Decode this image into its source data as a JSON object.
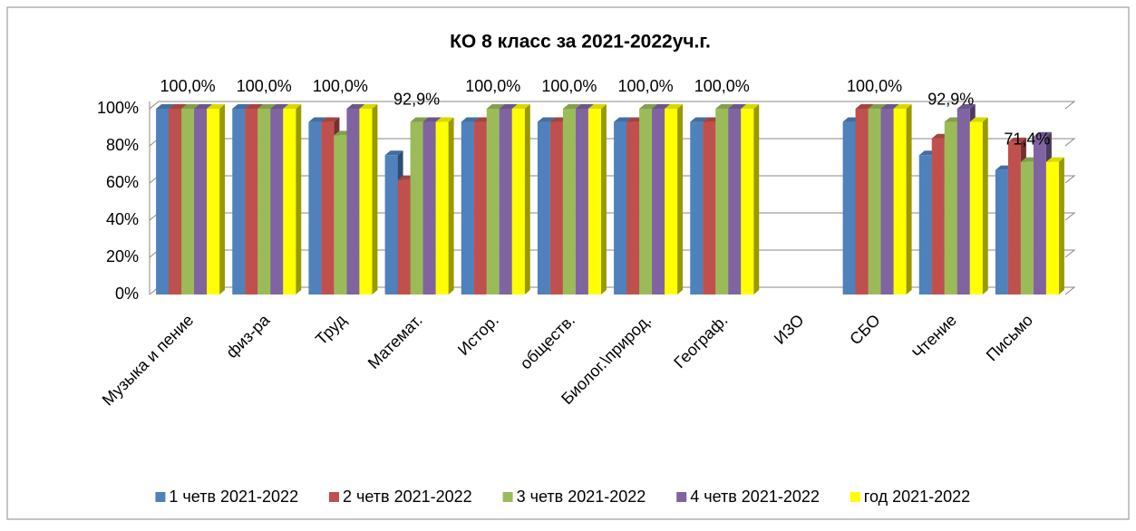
{
  "chart_data": {
    "type": "bar3d",
    "title": "КО 8 класс за 2021-2022уч.г.",
    "categories": [
      "Музыка и пение",
      "физ-ра",
      "Труд",
      "Математ.",
      "Истор.",
      "обществ.",
      "Биолог.\\природ.",
      "Географ.",
      "ИЗО",
      "СБО",
      "Чтение",
      "Письмо"
    ],
    "series": [
      {
        "name": "1 четв 2021-2022",
        "color": "#4f81bd",
        "values": [
          100,
          100,
          92.9,
          75,
          92.9,
          92.9,
          92.9,
          92.9,
          null,
          92.9,
          75,
          67
        ]
      },
      {
        "name": "2 четв 2021-2022",
        "color": "#c0504d",
        "values": [
          100,
          100,
          92.9,
          61.5,
          92.9,
          92.9,
          92.9,
          92.9,
          null,
          100,
          84,
          82
        ]
      },
      {
        "name": "3 четв 2021-2022",
        "color": "#9bbb59",
        "values": [
          100,
          100,
          85.7,
          92.9,
          100,
          100,
          100,
          100,
          null,
          100,
          92.9,
          71.4
        ]
      },
      {
        "name": "4 четв 2021-2022",
        "color": "#8064a2",
        "values": [
          100,
          100,
          100,
          92.9,
          100,
          100,
          100,
          100,
          null,
          100,
          100,
          85
        ]
      },
      {
        "name": "год 2021-2022",
        "color": "#ffff00",
        "values": [
          100,
          100,
          100,
          92.9,
          100,
          100,
          100,
          100,
          null,
          100,
          92.9,
          71.4
        ],
        "value_labels": [
          "100,0%",
          "100,0%",
          "100,0%",
          "92,9%",
          "100,0%",
          "100,0%",
          "100,0%",
          "100,0%",
          null,
          "100,0%",
          "92,9%",
          "71,4%"
        ]
      }
    ],
    "ylim": [
      0,
      100
    ],
    "yticks": [
      {
        "value": 0,
        "label": "0%"
      },
      {
        "value": 20,
        "label": "20%"
      },
      {
        "value": 40,
        "label": "40%"
      },
      {
        "value": 60,
        "label": "60%"
      },
      {
        "value": 80,
        "label": "80%"
      },
      {
        "value": 100,
        "label": "100%"
      }
    ],
    "grid": true,
    "legend": "bottom"
  }
}
